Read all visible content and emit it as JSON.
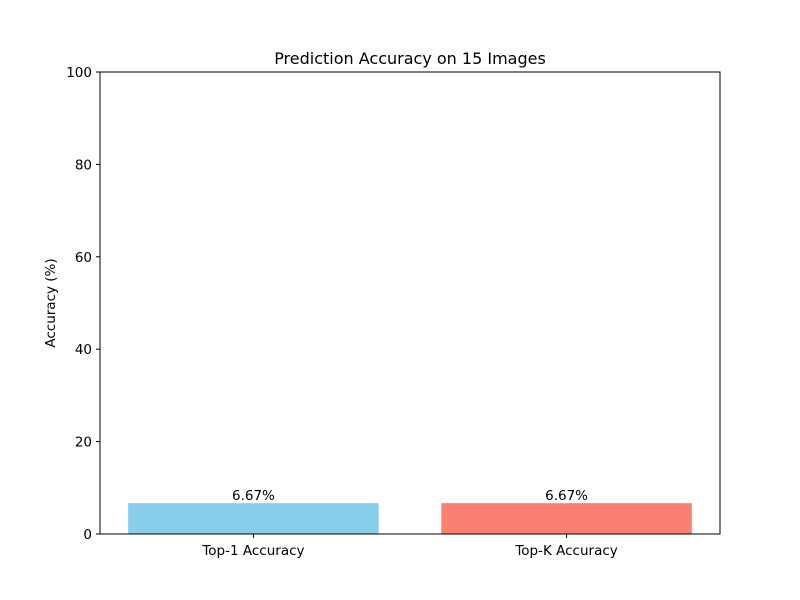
{
  "chart_data": {
    "type": "bar",
    "title": "Prediction Accuracy on 15 Images",
    "xlabel": "",
    "ylabel": "Accuracy (%)",
    "categories": [
      "Top-1 Accuracy",
      "Top-K Accuracy"
    ],
    "values": [
      6.67,
      6.67
    ],
    "value_labels": [
      "6.67%",
      "6.67%"
    ],
    "colors": [
      "#87ceeb",
      "#fa8072"
    ],
    "ylim": [
      0,
      100
    ],
    "yticks": [
      0,
      20,
      40,
      60,
      80,
      100
    ],
    "grid": false,
    "legend": "none"
  }
}
